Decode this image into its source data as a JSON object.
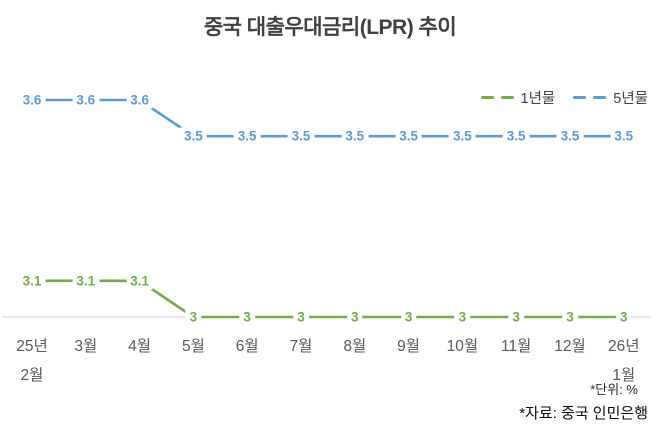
{
  "notes": {
    "unit": "*단위: %",
    "source": "*자료: 중국 인민은행"
  },
  "colors": {
    "one_year_line": "#70AD47",
    "five_year_line": "#5B9BD5",
    "axis_line": "#D9D9D9",
    "tick_text": "#595959",
    "title_text": "#404040"
  },
  "chart_data": {
    "type": "line",
    "title": "중국 대출우대금리(LPR) 추이",
    "unit": "%",
    "categories": [
      "25년 2월",
      "3월",
      "4월",
      "5월",
      "6월",
      "7월",
      "8월",
      "9월",
      "10월",
      "11월",
      "12월",
      "26년 1월"
    ],
    "category_lines": [
      [
        "25년",
        "2월"
      ],
      [
        "3월"
      ],
      [
        "4월"
      ],
      [
        "5월"
      ],
      [
        "6월"
      ],
      [
        "7월"
      ],
      [
        "8월"
      ],
      [
        "9월"
      ],
      [
        "10월"
      ],
      [
        "11월"
      ],
      [
        "12월"
      ],
      [
        "26년",
        "1월"
      ]
    ],
    "ylim": [
      3.0,
      3.6
    ],
    "grid": false,
    "legend_position": "top-right",
    "data_labels": true,
    "series": [
      {
        "name": "1년물",
        "color": "#70AD47",
        "values": [
          3.1,
          3.1,
          3.1,
          3,
          3,
          3,
          3,
          3,
          3,
          3,
          3,
          3
        ]
      },
      {
        "name": "5년물",
        "color": "#5B9BD5",
        "values": [
          3.6,
          3.6,
          3.6,
          3.5,
          3.5,
          3.5,
          3.5,
          3.5,
          3.5,
          3.5,
          3.5,
          3.5
        ]
      }
    ]
  }
}
